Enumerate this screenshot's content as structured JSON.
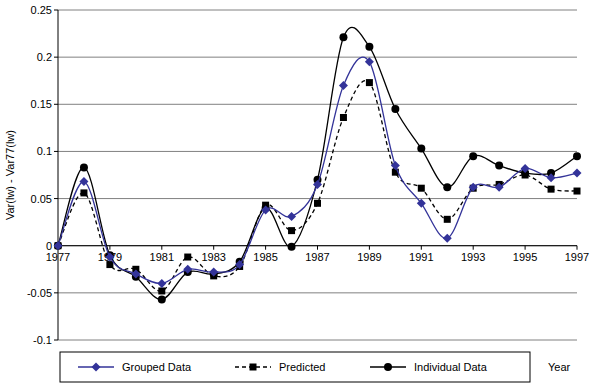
{
  "chart_data": {
    "type": "line",
    "y_label": "Var(lw) - Var77(lw)",
    "x_label": "Year",
    "x": [
      1977,
      1978,
      1979,
      1980,
      1981,
      1982,
      1983,
      1984,
      1985,
      1986,
      1987,
      1988,
      1989,
      1990,
      1991,
      1992,
      1993,
      1994,
      1995,
      1996,
      1997
    ],
    "series": [
      {
        "name": "Grouped Data",
        "color": "#333399",
        "marker": "diamond",
        "line_style": "solid",
        "values": [
          0,
          0.068,
          -0.012,
          -0.03,
          -0.04,
          -0.025,
          -0.028,
          -0.02,
          0.038,
          0.031,
          0.065,
          0.17,
          0.195,
          0.085,
          0.045,
          0.008,
          0.062,
          0.062,
          0.082,
          0.072,
          0.077
        ]
      },
      {
        "name": "Predicted",
        "color": "#000000",
        "marker": "square",
        "line_style": "dashed",
        "values": [
          0,
          0.056,
          -0.02,
          -0.025,
          -0.048,
          -0.012,
          -0.032,
          -0.022,
          0.043,
          0.016,
          0.045,
          0.136,
          0.173,
          0.078,
          0.061,
          0.028,
          0.061,
          0.065,
          0.075,
          0.06,
          0.058
        ]
      },
      {
        "name": "Individual Data",
        "color": "#000000",
        "marker": "circle",
        "line_style": "solid",
        "values": [
          0,
          0.083,
          -0.01,
          -0.033,
          -0.057,
          -0.028,
          -0.03,
          -0.017,
          0.04,
          -0.001,
          0.07,
          0.221,
          0.211,
          0.145,
          0.103,
          0.062,
          0.095,
          0.085,
          0.077,
          0.077,
          0.095
        ]
      }
    ],
    "xlim": [
      1977,
      1997
    ],
    "xticks": [
      1977,
      1979,
      1981,
      1983,
      1985,
      1987,
      1989,
      1991,
      1993,
      1995,
      1997
    ],
    "ylim": [
      -0.1,
      0.25
    ],
    "yticks": [
      -0.1,
      -0.05,
      0,
      0.05,
      0.1,
      0.15,
      0.2,
      0.25
    ],
    "grid": true,
    "legend": "bottom"
  }
}
